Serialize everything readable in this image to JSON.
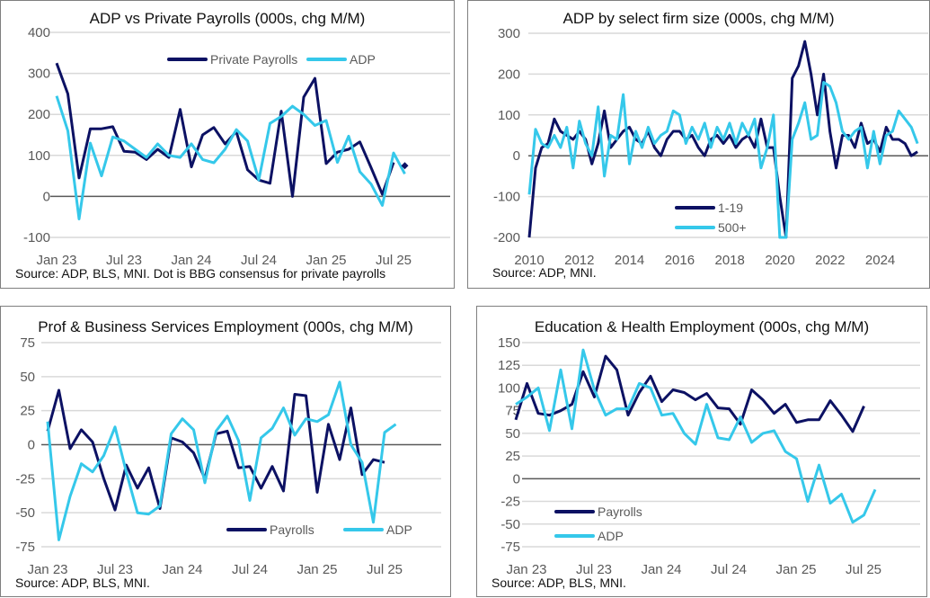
{
  "colors": {
    "navy": "#0c1163",
    "cyan": "#35c8ea",
    "grid": "#d9d9d9",
    "zero": "#595959"
  },
  "chart_data": [
    {
      "id": "c1",
      "type": "line",
      "title": "ADP vs Private Payrolls (000s, chg M/M)",
      "source": "Source: ADP, BLS, MNI. Dot is BBG consensus for private payrolls",
      "x_start": "Jan 23",
      "frequency": "monthly",
      "xticks": [
        "Jan 23",
        "Jul 23",
        "Jan 24",
        "Jul 24",
        "Jan 25",
        "Jul 25"
      ],
      "yticks": [
        400,
        300,
        200,
        100,
        0,
        -100
      ],
      "ylim": [
        -100,
        400
      ],
      "grid": true,
      "legend": "top-center",
      "series": [
        {
          "name": "Private Payrolls",
          "color": "navy",
          "values": [
            325,
            250,
            45,
            165,
            165,
            170,
            110,
            108,
            90,
            115,
            95,
            212,
            72,
            150,
            168,
            128,
            158,
            65,
            40,
            32,
            208,
            0,
            242,
            288,
            80,
            108,
            115,
            133,
            70,
            5,
            83
          ]
        },
        {
          "name": "ADP",
          "color": "cyan",
          "values": [
            245,
            160,
            -55,
            130,
            50,
            145,
            135,
            115,
            95,
            128,
            100,
            95,
            128,
            90,
            82,
            115,
            163,
            135,
            40,
            178,
            195,
            220,
            200,
            173,
            185,
            83,
            147,
            60,
            30,
            -22,
            106,
            55
          ]
        }
      ],
      "annotations": [
        {
          "month": "Aug 25",
          "value": 75
        }
      ]
    },
    {
      "id": "c2",
      "type": "line",
      "title": "ADP by select firm size (000s, chg M/M)",
      "source": "Source: ADP, MNI.",
      "x_start": 2010,
      "frequency": "quarterly",
      "xticks": [
        "2010",
        "2012",
        "2014",
        "2016",
        "2018",
        "2020",
        "2022",
        "2024"
      ],
      "yticks": [
        300,
        200,
        100,
        0,
        -100,
        -200
      ],
      "ylim": [
        -200,
        300
      ],
      "grid": true,
      "legend": "bottom-center",
      "series": [
        {
          "name": "1-19",
          "color": "navy",
          "values": [
            -200,
            -30,
            20,
            30,
            90,
            60,
            50,
            40,
            60,
            40,
            -20,
            30,
            110,
            20,
            40,
            60,
            70,
            40,
            30,
            60,
            20,
            0,
            40,
            60,
            60,
            40,
            50,
            20,
            0,
            40,
            50,
            30,
            50,
            20,
            40,
            50,
            20,
            90,
            20,
            20,
            -100,
            -220,
            190,
            220,
            280,
            200,
            100,
            200,
            60,
            -30,
            50,
            50,
            20,
            80,
            30,
            40,
            10,
            70,
            40,
            40,
            30,
            0,
            10
          ]
        },
        {
          "name": "500+",
          "color": "cyan",
          "values": [
            -95,
            65,
            30,
            20,
            50,
            20,
            70,
            -30,
            85,
            30,
            0,
            120,
            -50,
            50,
            40,
            150,
            -20,
            60,
            20,
            70,
            30,
            50,
            60,
            110,
            100,
            30,
            70,
            40,
            80,
            20,
            70,
            40,
            80,
            30,
            80,
            50,
            90,
            -30,
            20,
            100,
            -500,
            -220,
            40,
            80,
            130,
            40,
            50,
            180,
            170,
            130,
            60,
            40,
            60,
            70,
            -30,
            60,
            -20,
            50,
            60,
            110,
            90,
            70,
            30
          ]
        }
      ]
    },
    {
      "id": "c3",
      "type": "line",
      "title": "Prof & Business Services Employment (000s, chg M/M)",
      "source": "Source: ADP, BLS, MNI.",
      "x_start": "Jan 23",
      "frequency": "monthly",
      "xticks": [
        "Jan 23",
        "Jul 23",
        "Jan 24",
        "Jul 24",
        "Jan 25",
        "Jul 25"
      ],
      "yticks": [
        75,
        50,
        25,
        0,
        -25,
        -50,
        -75
      ],
      "ylim": [
        -75,
        75
      ],
      "grid": true,
      "legend": "bottom-right",
      "series": [
        {
          "name": "Payrolls",
          "color": "navy",
          "values": [
            10,
            40,
            -3,
            11,
            2,
            -25,
            -48,
            -15,
            -32,
            -17,
            -47,
            5,
            2,
            -6,
            -25,
            8,
            10,
            -17,
            -16,
            -32,
            -16,
            -34,
            37,
            36,
            -35,
            15,
            -11,
            27,
            -22,
            -11,
            -13
          ]
        },
        {
          "name": "ADP",
          "color": "cyan",
          "values": [
            17,
            -70,
            -38,
            -14,
            -20,
            -8,
            13,
            -20,
            -50,
            -51,
            -45,
            8,
            19,
            11,
            -28,
            10,
            21,
            3,
            -41,
            5,
            12,
            27,
            7,
            19,
            17,
            22,
            46,
            0,
            -13,
            -57,
            9,
            15
          ]
        }
      ]
    },
    {
      "id": "c4",
      "type": "line",
      "title": "Education & Health Employment (000s, chg M/M)",
      "source": "Source: ADP, BLS, MNI.",
      "x_start": "Dec 22",
      "frequency": "monthly",
      "xticks": [
        "Jan 23",
        "Jul 23",
        "Jan 24",
        "Jul 24",
        "Jan 25",
        "Jul 25"
      ],
      "yticks": [
        150,
        125,
        100,
        75,
        50,
        25,
        0,
        -25,
        -50,
        -75
      ],
      "ylim": [
        -75,
        150
      ],
      "grid": true,
      "legend": "bottom-left",
      "series": [
        {
          "name": "Payrolls",
          "color": "navy",
          "values": [
            65,
            105,
            72,
            70,
            75,
            82,
            118,
            90,
            135,
            120,
            70,
            95,
            113,
            85,
            98,
            95,
            87,
            94,
            78,
            77,
            60,
            98,
            87,
            72,
            82,
            62,
            65,
            65,
            86,
            70,
            52,
            80
          ]
        },
        {
          "name": "ADP",
          "color": "cyan",
          "values": [
            82,
            90,
            100,
            53,
            120,
            55,
            142,
            98,
            70,
            77,
            77,
            105,
            100,
            70,
            72,
            50,
            38,
            82,
            45,
            43,
            68,
            40,
            50,
            53,
            30,
            22,
            -25,
            15,
            -27,
            -17,
            -48,
            -40,
            -12
          ]
        }
      ]
    }
  ]
}
